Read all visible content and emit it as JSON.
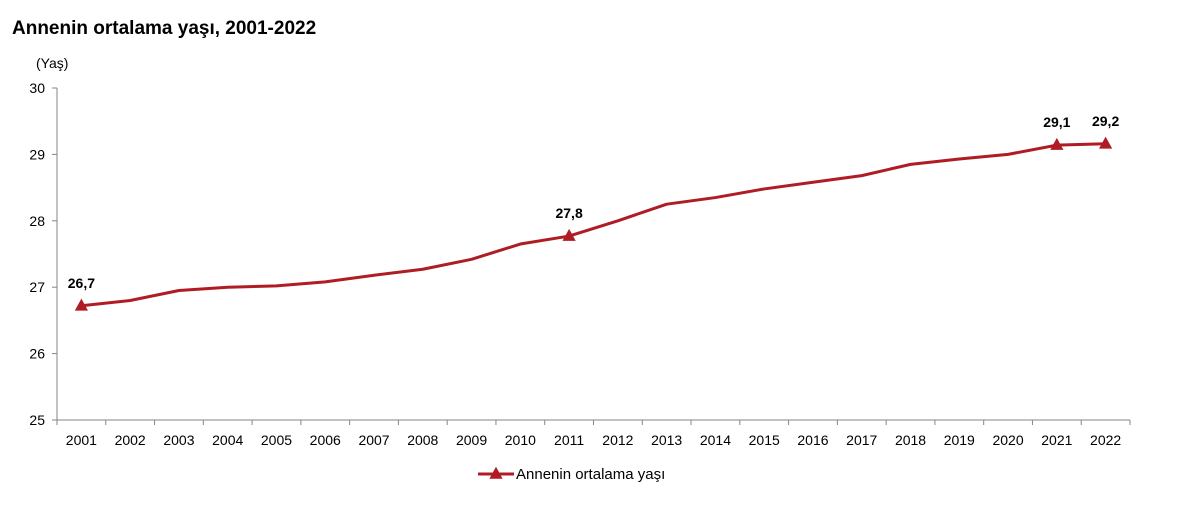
{
  "chart_data": {
    "type": "line",
    "title": "Annenin ortalama yaşı, 2001-2022",
    "ylabel": "(Yaş)",
    "xlabel": "",
    "ylim": [
      25,
      30
    ],
    "yticks": [
      "25",
      "26",
      "27",
      "28",
      "29",
      "30"
    ],
    "categories": [
      "2001",
      "2002",
      "2003",
      "2004",
      "2005",
      "2006",
      "2007",
      "2008",
      "2009",
      "2010",
      "2011",
      "2012",
      "2013",
      "2014",
      "2015",
      "2016",
      "2017",
      "2018",
      "2019",
      "2020",
      "2021",
      "2022"
    ],
    "series": [
      {
        "name": "Annenin ortalama yaşı",
        "color": "#b01c24",
        "marker": "triangle",
        "values": [
          26.72,
          26.8,
          26.95,
          27.0,
          27.02,
          27.08,
          27.18,
          27.27,
          27.42,
          27.65,
          27.77,
          28.0,
          28.25,
          28.35,
          28.48,
          28.58,
          28.68,
          28.85,
          28.93,
          29.0,
          29.14,
          29.16
        ]
      }
    ],
    "annotations": [
      {
        "category": "2001",
        "value": 26.72,
        "text": "26,7"
      },
      {
        "category": "2011",
        "value": 27.77,
        "text": "27,8"
      },
      {
        "category": "2021",
        "value": 29.14,
        "text": "29,1"
      },
      {
        "category": "2022",
        "value": 29.16,
        "text": "29,2"
      }
    ],
    "grid": false,
    "legend": "bottom"
  }
}
